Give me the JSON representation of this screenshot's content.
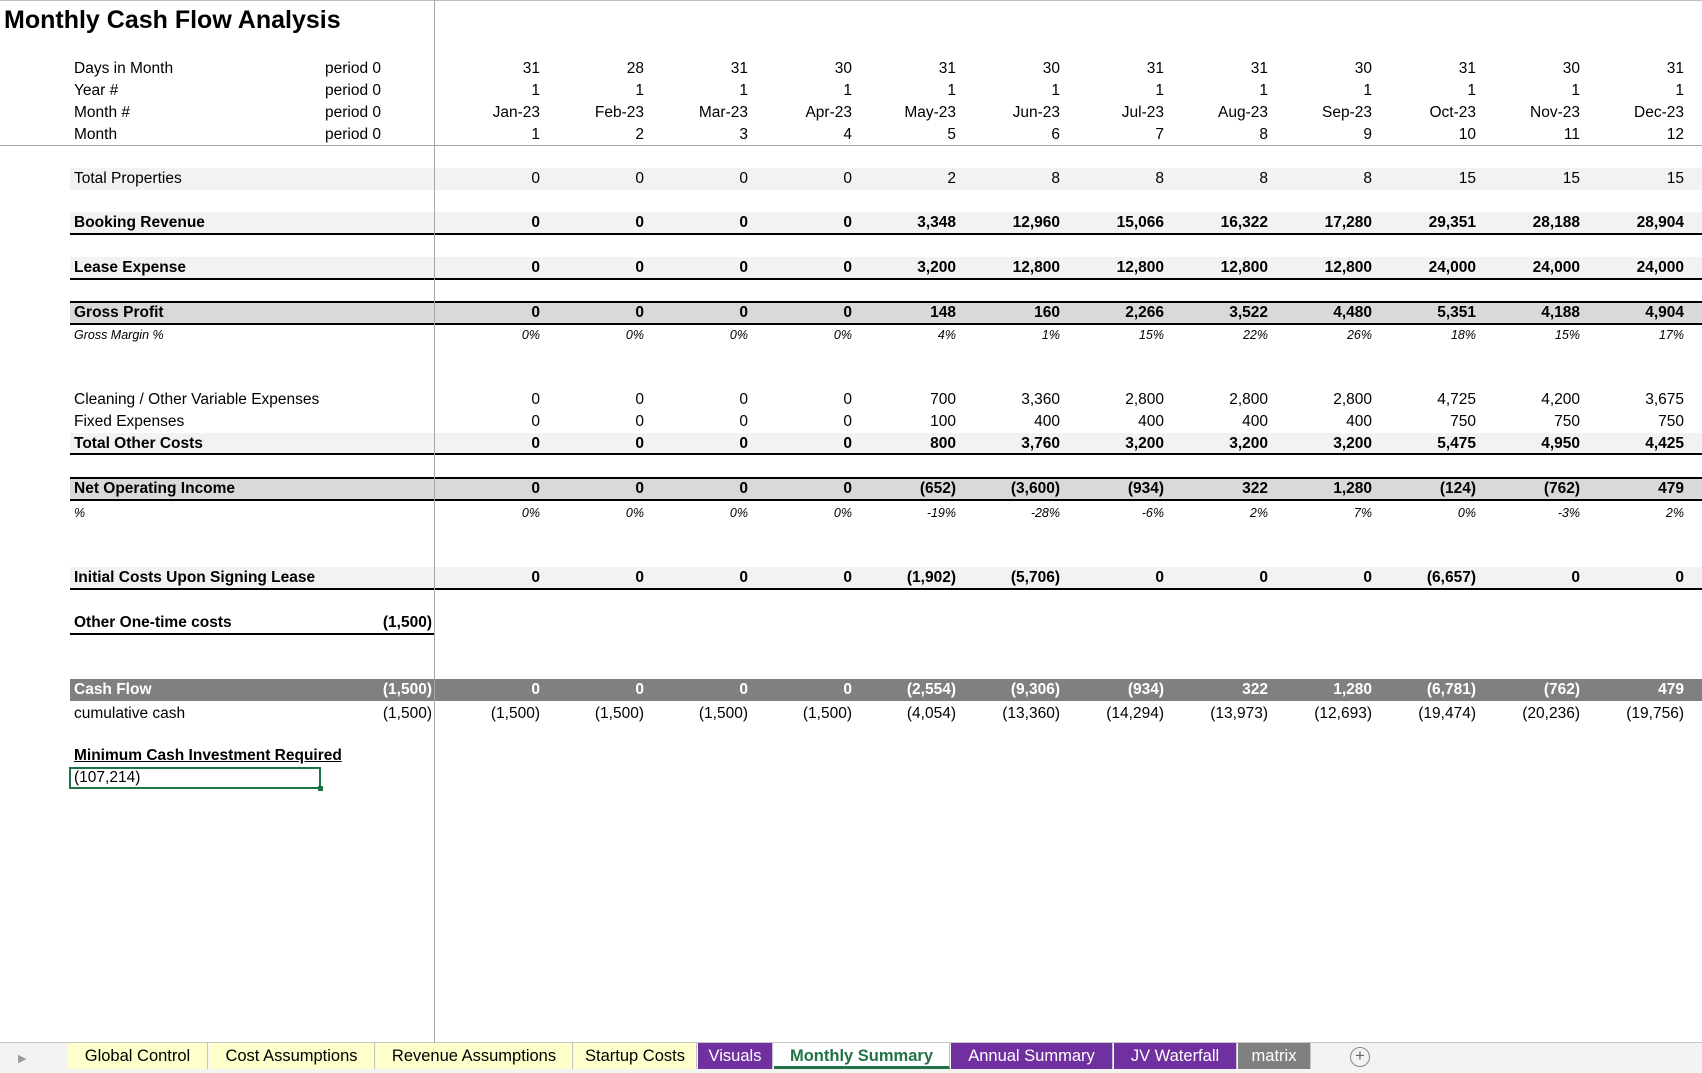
{
  "title": "Monthly Cash Flow Analysis",
  "header_rows": [
    {
      "label": "Days in Month",
      "period": "period 0",
      "values": [
        "31",
        "28",
        "31",
        "30",
        "31",
        "30",
        "31",
        "31",
        "30",
        "31",
        "30",
        "31"
      ]
    },
    {
      "label": "Year #",
      "period": "period 0",
      "values": [
        "1",
        "1",
        "1",
        "1",
        "1",
        "1",
        "1",
        "1",
        "1",
        "1",
        "1",
        "1"
      ]
    },
    {
      "label": "Month #",
      "period": "period 0",
      "values": [
        "Jan-23",
        "Feb-23",
        "Mar-23",
        "Apr-23",
        "May-23",
        "Jun-23",
        "Jul-23",
        "Aug-23",
        "Sep-23",
        "Oct-23",
        "Nov-23",
        "Dec-23"
      ]
    },
    {
      "label": "Month",
      "period": "period 0",
      "values": [
        "1",
        "2",
        "3",
        "4",
        "5",
        "6",
        "7",
        "8",
        "9",
        "10",
        "11",
        "12"
      ]
    }
  ],
  "total_properties": {
    "label": "Total Properties",
    "values": [
      "0",
      "0",
      "0",
      "0",
      "2",
      "8",
      "8",
      "8",
      "8",
      "15",
      "15",
      "15"
    ]
  },
  "booking_revenue": {
    "label": "Booking Revenue",
    "values": [
      "0",
      "0",
      "0",
      "0",
      "3,348",
      "12,960",
      "15,066",
      "16,322",
      "17,280",
      "29,351",
      "28,188",
      "28,904"
    ]
  },
  "lease_expense": {
    "label": "Lease Expense",
    "values": [
      "0",
      "0",
      "0",
      "0",
      "3,200",
      "12,800",
      "12,800",
      "12,800",
      "12,800",
      "24,000",
      "24,000",
      "24,000"
    ]
  },
  "gross_profit": {
    "label": "Gross Profit",
    "values": [
      "0",
      "0",
      "0",
      "0",
      "148",
      "160",
      "2,266",
      "3,522",
      "4,480",
      "5,351",
      "4,188",
      "4,904"
    ]
  },
  "gross_margin": {
    "label": "Gross Margin %",
    "values": [
      "0%",
      "0%",
      "0%",
      "0%",
      "4%",
      "1%",
      "15%",
      "22%",
      "26%",
      "18%",
      "15%",
      "17%"
    ]
  },
  "cleaning": {
    "label": "Cleaning / Other Variable Expenses",
    "values": [
      "0",
      "0",
      "0",
      "0",
      "700",
      "3,360",
      "2,800",
      "2,800",
      "2,800",
      "4,725",
      "4,200",
      "3,675"
    ]
  },
  "fixed_expenses": {
    "label": "Fixed Expenses",
    "values": [
      "0",
      "0",
      "0",
      "0",
      "100",
      "400",
      "400",
      "400",
      "400",
      "750",
      "750",
      "750"
    ]
  },
  "total_other_costs": {
    "label": "Total Other Costs",
    "values": [
      "0",
      "0",
      "0",
      "0",
      "800",
      "3,760",
      "3,200",
      "3,200",
      "3,200",
      "5,475",
      "4,950",
      "4,425"
    ]
  },
  "net_operating_income": {
    "label": "Net Operating Income",
    "values": [
      "0",
      "0",
      "0",
      "0",
      "(652)",
      "(3,600)",
      "(934)",
      "322",
      "1,280",
      "(124)",
      "(762)",
      "479"
    ]
  },
  "noi_pct": {
    "label": "%",
    "values": [
      "0%",
      "0%",
      "0%",
      "0%",
      "-19%",
      "-28%",
      "-6%",
      "2%",
      "7%",
      "0%",
      "-3%",
      "2%"
    ]
  },
  "initial_costs": {
    "label": "Initial Costs Upon Signing Lease",
    "values": [
      "0",
      "0",
      "0",
      "0",
      "(1,902)",
      "(5,706)",
      "0",
      "0",
      "0",
      "(6,657)",
      "0",
      "0"
    ]
  },
  "one_time_costs": {
    "label": "Other One-time costs",
    "pre": "(1,500)"
  },
  "cash_flow": {
    "label": "Cash Flow",
    "pre": "(1,500)",
    "values": [
      "0",
      "0",
      "0",
      "0",
      "(2,554)",
      "(9,306)",
      "(934)",
      "322",
      "1,280",
      "(6,781)",
      "(762)",
      "479"
    ]
  },
  "cumulative_cash": {
    "label": "cumulative cash",
    "pre": "(1,500)",
    "values": [
      "(1,500)",
      "(1,500)",
      "(1,500)",
      "(1,500)",
      "(4,054)",
      "(13,360)",
      "(14,294)",
      "(13,973)",
      "(12,693)",
      "(19,474)",
      "(20,236)",
      "(19,756)"
    ]
  },
  "min_cash": {
    "label": "Minimum Cash Investment Required",
    "value": "(107,214)"
  },
  "tabs": [
    {
      "label": "Global Control",
      "style": "yellow"
    },
    {
      "label": "Cost Assumptions",
      "style": "yellow"
    },
    {
      "label": "Revenue Assumptions",
      "style": "yellow"
    },
    {
      "label": "Startup Costs",
      "style": "yellow"
    },
    {
      "label": "Visuals",
      "style": "purple"
    },
    {
      "label": "Monthly Summary",
      "style": "active"
    },
    {
      "label": "Annual Summary",
      "style": "purple"
    },
    {
      "label": "JV Waterfall",
      "style": "purple"
    },
    {
      "label": "matrix",
      "style": "gray"
    }
  ],
  "colors": {
    "accent": "#217346",
    "purple_tab": "#7030a0",
    "yellow_tab": "#ffffcc",
    "band_dark": "#808080",
    "band_gray": "#d9d9d9",
    "band_light": "#f2f2f2"
  }
}
